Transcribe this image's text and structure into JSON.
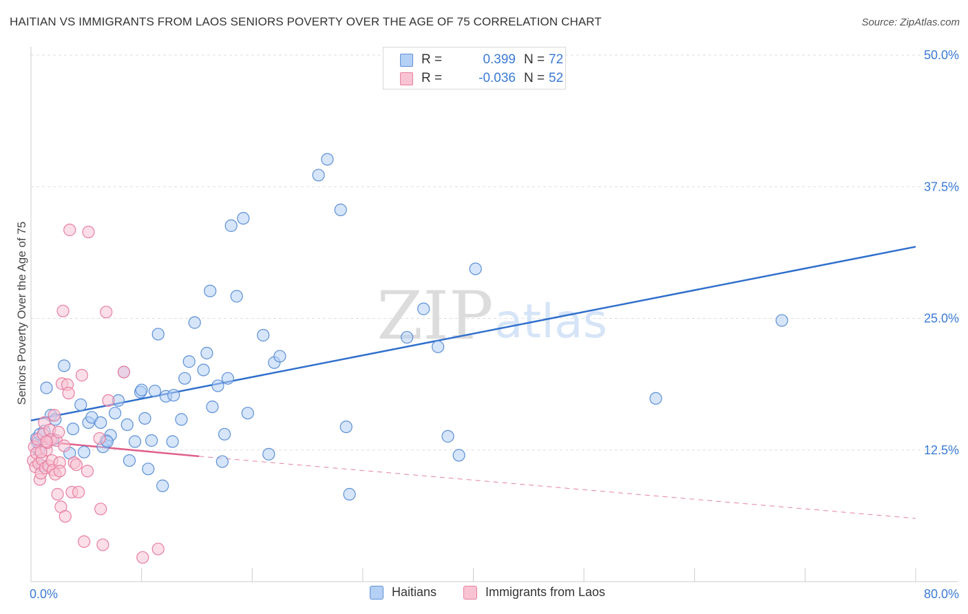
{
  "header": {
    "title": "HAITIAN VS IMMIGRANTS FROM LAOS SENIORS POVERTY OVER THE AGE OF 75 CORRELATION CHART",
    "source": "Source: ZipAtlas.com"
  },
  "watermark": {
    "zip": "ZIP",
    "atlas": "atlas"
  },
  "colors": {
    "haitians_fill": "#b5d0f5",
    "haitians_stroke": "#5b8fd6",
    "haitians_line": "#2f6fcc",
    "laos_fill": "#f8c3d3",
    "laos_stroke": "#e87ea0",
    "laos_line": "#e0608a",
    "axis_label": "#3a7bd5",
    "grid": "#dddddd"
  },
  "legend_top": {
    "rows": [
      {
        "r_label": "R =",
        "r_value": "0.399",
        "n_label": "N =",
        "n_value": "72"
      },
      {
        "r_label": "R =",
        "r_value": "-0.036",
        "n_label": "N =",
        "n_value": "52"
      }
    ]
  },
  "chart_data": {
    "type": "scatter",
    "title": "HAITIAN VS IMMIGRANTS FROM LAOS SENIORS POVERTY OVER THE AGE OF 75 CORRELATION CHART",
    "xlabel": "",
    "ylabel": "Seniors Poverty Over the Age of 75",
    "xlim": [
      0,
      80
    ],
    "ylim": [
      0,
      50
    ],
    "x_tick_labels": [
      "0.0%",
      "80.0%"
    ],
    "y_ticks": [
      12.5,
      25.0,
      37.5,
      50.0
    ],
    "y_tick_labels": [
      "12.5%",
      "25.0%",
      "37.5%",
      "50.0%"
    ],
    "grid": true,
    "legend_position": "bottom",
    "series": [
      {
        "name": "Haitians",
        "r": 0.399,
        "n": 72,
        "trend": {
          "x": [
            0,
            80
          ],
          "y": [
            15.3,
            31.8
          ],
          "style": "solid"
        },
        "points": [
          [
            0.5,
            13.6
          ],
          [
            0.6,
            13.2
          ],
          [
            0.7,
            12.5
          ],
          [
            0.8,
            14.0
          ],
          [
            1.0,
            11.0
          ],
          [
            1.2,
            14.3
          ],
          [
            1.4,
            18.4
          ],
          [
            1.8,
            15.8
          ],
          [
            2.0,
            13.5
          ],
          [
            2.2,
            15.4
          ],
          [
            3.0,
            20.5
          ],
          [
            3.5,
            12.2
          ],
          [
            3.8,
            14.5
          ],
          [
            4.5,
            16.8
          ],
          [
            4.8,
            12.3
          ],
          [
            5.2,
            15.1
          ],
          [
            5.5,
            15.6
          ],
          [
            6.3,
            15.1
          ],
          [
            6.5,
            12.8
          ],
          [
            6.8,
            13.4
          ],
          [
            7.2,
            13.9
          ],
          [
            7.6,
            16.0
          ],
          [
            7.9,
            17.2
          ],
          [
            8.4,
            19.9
          ],
          [
            8.7,
            14.9
          ],
          [
            8.9,
            11.5
          ],
          [
            9.4,
            13.3
          ],
          [
            9.9,
            18.0
          ],
          [
            10.0,
            18.2
          ],
          [
            10.3,
            15.5
          ],
          [
            10.6,
            10.7
          ],
          [
            10.9,
            13.4
          ],
          [
            11.2,
            18.1
          ],
          [
            11.5,
            23.5
          ],
          [
            11.9,
            9.1
          ],
          [
            12.2,
            17.6
          ],
          [
            12.8,
            13.3
          ],
          [
            12.9,
            17.7
          ],
          [
            13.6,
            15.4
          ],
          [
            13.9,
            19.3
          ],
          [
            14.3,
            20.9
          ],
          [
            14.8,
            24.6
          ],
          [
            15.6,
            20.1
          ],
          [
            15.9,
            21.7
          ],
          [
            16.2,
            27.6
          ],
          [
            16.4,
            16.6
          ],
          [
            16.9,
            18.6
          ],
          [
            17.3,
            11.4
          ],
          [
            17.5,
            14.0
          ],
          [
            17.8,
            19.3
          ],
          [
            18.1,
            33.8
          ],
          [
            18.6,
            27.1
          ],
          [
            19.2,
            34.5
          ],
          [
            19.6,
            16.0
          ],
          [
            21.0,
            23.4
          ],
          [
            21.5,
            12.1
          ],
          [
            22.0,
            20.8
          ],
          [
            22.5,
            21.4
          ],
          [
            26.0,
            38.6
          ],
          [
            26.8,
            40.1
          ],
          [
            28.0,
            35.3
          ],
          [
            28.5,
            14.7
          ],
          [
            28.8,
            8.3
          ],
          [
            34.0,
            23.2
          ],
          [
            35.5,
            25.9
          ],
          [
            36.8,
            22.3
          ],
          [
            37.7,
            13.8
          ],
          [
            38.7,
            12.0
          ],
          [
            40.2,
            29.7
          ],
          [
            56.5,
            17.4
          ],
          [
            67.9,
            24.8
          ],
          [
            6.9,
            13.3
          ]
        ]
      },
      {
        "name": "Immigrants from Laos",
        "r": -0.036,
        "n": 52,
        "trend": {
          "x": [
            0,
            15.2
          ],
          "y": [
            13.4,
            11.9
          ],
          "style": "solid",
          "extended": {
            "x": [
              15.2,
              80
            ],
            "y": [
              11.9,
              6.0
            ],
            "style": "dashed"
          }
        },
        "points": [
          [
            0.2,
            11.5
          ],
          [
            0.3,
            12.8
          ],
          [
            0.4,
            10.9
          ],
          [
            0.5,
            12.2
          ],
          [
            0.6,
            13.5
          ],
          [
            0.7,
            11.2
          ],
          [
            0.8,
            9.7
          ],
          [
            0.9,
            10.3
          ],
          [
            1.0,
            11.6
          ],
          [
            1.1,
            14.0
          ],
          [
            1.2,
            15.1
          ],
          [
            1.3,
            10.8
          ],
          [
            1.4,
            12.5
          ],
          [
            1.5,
            13.2
          ],
          [
            1.6,
            11.0
          ],
          [
            1.7,
            14.4
          ],
          [
            1.8,
            13.5
          ],
          [
            1.9,
            11.5
          ],
          [
            2.0,
            10.6
          ],
          [
            2.1,
            15.8
          ],
          [
            2.2,
            10.2
          ],
          [
            2.3,
            13.4
          ],
          [
            2.4,
            8.3
          ],
          [
            2.5,
            14.2
          ],
          [
            2.6,
            11.3
          ],
          [
            2.7,
            7.1
          ],
          [
            2.8,
            18.8
          ],
          [
            2.9,
            25.7
          ],
          [
            3.0,
            12.9
          ],
          [
            3.1,
            6.2
          ],
          [
            3.3,
            18.7
          ],
          [
            3.4,
            17.9
          ],
          [
            3.5,
            33.4
          ],
          [
            3.7,
            8.5
          ],
          [
            3.9,
            11.3
          ],
          [
            4.1,
            11.1
          ],
          [
            4.3,
            8.5
          ],
          [
            4.6,
            19.6
          ],
          [
            4.8,
            3.8
          ],
          [
            5.1,
            10.5
          ],
          [
            5.2,
            33.2
          ],
          [
            6.2,
            13.6
          ],
          [
            6.3,
            6.9
          ],
          [
            6.5,
            3.5
          ],
          [
            6.8,
            25.6
          ],
          [
            7.0,
            17.2
          ],
          [
            8.4,
            19.9
          ],
          [
            10.1,
            2.3
          ],
          [
            11.5,
            3.1
          ],
          [
            1.4,
            13.3
          ],
          [
            2.6,
            10.5
          ],
          [
            0.9,
            12.3
          ]
        ]
      }
    ]
  },
  "legend_bottom": {
    "items": [
      {
        "label": "Haitians"
      },
      {
        "label": "Immigrants from Laos"
      }
    ]
  }
}
